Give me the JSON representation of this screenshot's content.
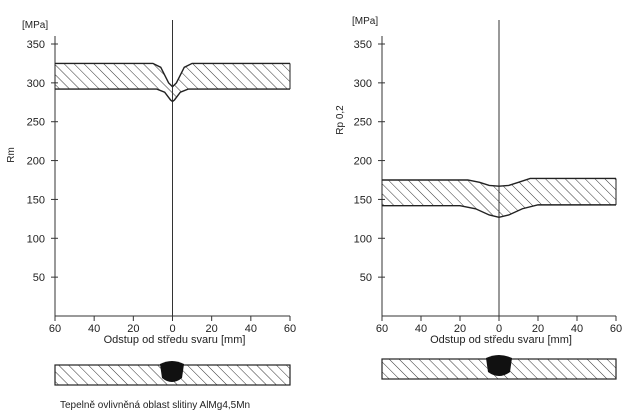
{
  "caption": "Tepelně ovlivněná oblast slitiny AlMg4,5Mn",
  "chart_data": [
    {
      "type": "area",
      "title": "",
      "xlabel": "Odstup od středu svaru [mm]",
      "ylabel": "Rm",
      "yunit": "[MPa]",
      "xlim": [
        -60,
        60
      ],
      "ylim": [
        0,
        350
      ],
      "xticks": [
        -60,
        -40,
        -20,
        0,
        20,
        40,
        60
      ],
      "xtick_labels": [
        "60",
        "40",
        "20",
        "0",
        "20",
        "40",
        "60"
      ],
      "yticks": [
        50,
        100,
        150,
        200,
        250,
        300,
        350
      ],
      "series": [
        {
          "role": "upper",
          "x": [
            -60,
            -10,
            -6,
            -2,
            0,
            2,
            6,
            10,
            60
          ],
          "y": [
            325,
            325,
            320,
            300,
            295,
            300,
            320,
            325,
            325
          ]
        },
        {
          "role": "lower",
          "x": [
            -60,
            -8,
            -4,
            -1,
            0,
            1,
            4,
            8,
            60
          ],
          "y": [
            292,
            292,
            288,
            278,
            276,
            278,
            288,
            292,
            292
          ]
        }
      ],
      "grid": false
    },
    {
      "type": "area",
      "title": "",
      "xlabel": "Odstup od středu svaru [mm]",
      "ylabel": "Rp 0,2",
      "yunit": "[MPa]",
      "xlim": [
        -60,
        60
      ],
      "ylim": [
        0,
        350
      ],
      "xticks": [
        -60,
        -40,
        -20,
        0,
        20,
        40,
        60
      ],
      "xtick_labels": [
        "60",
        "40",
        "20",
        "0",
        "20",
        "40",
        "60"
      ],
      "yticks": [
        50,
        100,
        150,
        200,
        250,
        300,
        350
      ],
      "series": [
        {
          "role": "upper",
          "x": [
            -60,
            -16,
            -10,
            -5,
            0,
            5,
            10,
            16,
            60
          ],
          "y": [
            175,
            175,
            172,
            168,
            167,
            168,
            172,
            177,
            177
          ]
        },
        {
          "role": "lower",
          "x": [
            -60,
            -20,
            -12,
            -5,
            0,
            5,
            12,
            20,
            60
          ],
          "y": [
            142,
            142,
            138,
            130,
            127,
            130,
            138,
            143,
            143
          ]
        }
      ],
      "grid": false
    }
  ]
}
